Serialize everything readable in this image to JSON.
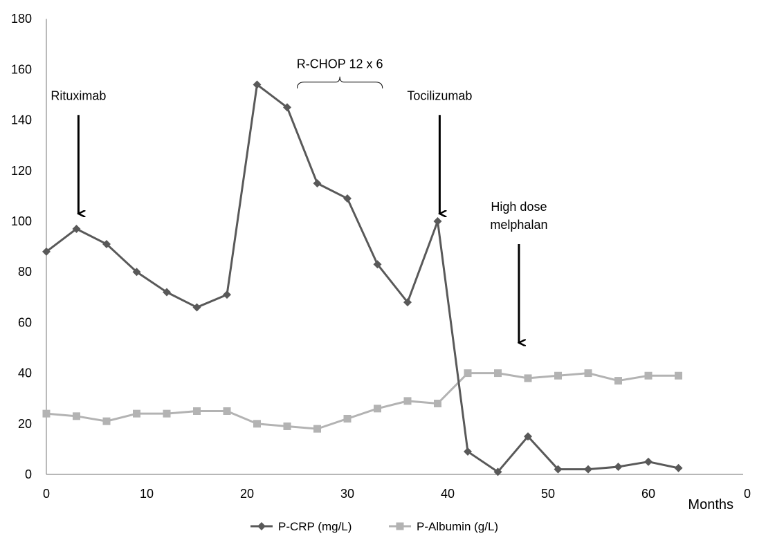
{
  "chart_data": {
    "type": "line",
    "xlabel": "Months",
    "x_right_label": "0",
    "xlim": [
      0,
      70
    ],
    "ylim": [
      0,
      180
    ],
    "x_ticks": [
      0,
      10,
      20,
      30,
      40,
      50,
      60
    ],
    "y_ticks": [
      0,
      20,
      40,
      60,
      80,
      100,
      120,
      140,
      160,
      180
    ],
    "grid": false,
    "legend_position": "bottom",
    "x": [
      0,
      3,
      6,
      9,
      12,
      15,
      18,
      21,
      24,
      27,
      30,
      33,
      36,
      39,
      42,
      45,
      48,
      51,
      54,
      57,
      60,
      63
    ],
    "series": [
      {
        "name": "P-CRP (mg/L)",
        "marker": "diamond",
        "color": "#595959",
        "values": [
          88,
          97,
          91,
          80,
          72,
          66,
          71,
          154,
          145,
          115,
          109,
          83,
          68,
          100,
          9,
          1,
          15,
          2,
          2,
          3,
          5,
          2.5
        ]
      },
      {
        "name": "P-Albumin (g/L)",
        "marker": "square",
        "color": "#b3b3b3",
        "values": [
          24,
          23,
          21,
          24,
          24,
          25,
          25,
          20,
          19,
          18,
          22,
          26,
          29,
          28,
          40,
          40,
          38,
          39,
          40,
          37,
          39,
          39
        ]
      }
    ],
    "annotations": [
      {
        "id": "rituximab",
        "lines": [
          "Rituximab"
        ],
        "arrow_x": 3.2,
        "arrow_from_y": 142,
        "arrow_to_y": 103
      },
      {
        "id": "tocilizumab",
        "lines": [
          "Tocilizumab"
        ],
        "arrow_x": 39.2,
        "arrow_from_y": 142,
        "arrow_to_y": 103
      },
      {
        "id": "melphalan",
        "lines": [
          "High dose",
          "melphalan"
        ],
        "arrow_x": 47.1,
        "arrow_from_y": 91,
        "arrow_to_y": 52
      }
    ],
    "bracket": {
      "label": "R-CHOP 12 x 6",
      "x_start": 25,
      "x_end": 33.5,
      "y": 155
    }
  }
}
